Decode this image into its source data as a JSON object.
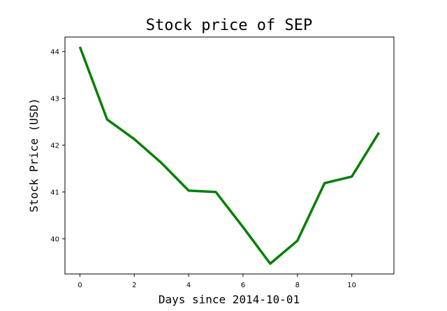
{
  "chart_data": {
    "type": "line",
    "title": "Stock price of SEP",
    "xlabel": "Days since 2014-10-01",
    "ylabel": "Stock Price (USD)",
    "x": [
      0,
      1,
      2,
      3,
      4,
      5,
      6,
      7,
      8,
      9,
      10,
      11
    ],
    "series": [
      {
        "values": [
          44.1,
          42.55,
          42.13,
          41.62,
          41.03,
          41.0,
          40.25,
          39.47,
          39.96,
          41.19,
          41.33,
          42.27
        ],
        "color": "#008000"
      }
    ],
    "xlim": [
      -0.55,
      11.55
    ],
    "ylim": [
      39.25,
      44.31
    ],
    "xticks": [
      0,
      2,
      4,
      6,
      8,
      10
    ],
    "yticks": [
      40,
      41,
      42,
      43,
      44
    ],
    "xtick_labels": [
      "0",
      "2",
      "4",
      "6",
      "8",
      "10"
    ],
    "ytick_labels": [
      "40",
      "41",
      "42",
      "43",
      "44"
    ],
    "grid": false,
    "legend": "none"
  }
}
